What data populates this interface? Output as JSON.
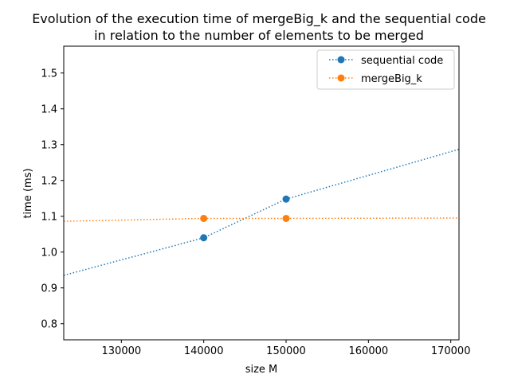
{
  "chart_data": {
    "type": "line",
    "title": [
      "Evolution of the execution time of mergeBig_k and the sequential code",
      "in relation to the number of elements to be merged"
    ],
    "xlabel": "size M",
    "ylabel": "time (ms)",
    "xlim": [
      123000,
      171000
    ],
    "ylim": [
      0.755,
      1.575
    ],
    "xticks": [
      130000,
      140000,
      150000,
      160000,
      170000
    ],
    "xtick_labels": [
      "130000",
      "140000",
      "150000",
      "160000",
      "170000"
    ],
    "yticks": [
      0.8,
      0.9,
      1.0,
      1.1,
      1.2,
      1.3,
      1.4,
      1.5
    ],
    "ytick_labels": [
      "0.8",
      "0.9",
      "1.0",
      "1.1",
      "1.2",
      "1.3",
      "1.4",
      "1.5"
    ],
    "grid": false,
    "legend_position": "top-right",
    "series": [
      {
        "name": "sequential code",
        "color": "#1f77b4",
        "line_style": "dotted",
        "x": [
          123000,
          140000,
          150000,
          171000
        ],
        "y": [
          0.935,
          1.04,
          1.148,
          1.287
        ],
        "marker_x": [
          140000,
          150000
        ],
        "marker_y": [
          1.04,
          1.148
        ]
      },
      {
        "name": "mergeBig_k",
        "color": "#ff7f0e",
        "line_style": "dotted",
        "x": [
          123000,
          140000,
          150000,
          171000
        ],
        "y": [
          1.086,
          1.094,
          1.094,
          1.095
        ],
        "marker_x": [
          140000,
          150000
        ],
        "marker_y": [
          1.094,
          1.094
        ]
      }
    ]
  }
}
